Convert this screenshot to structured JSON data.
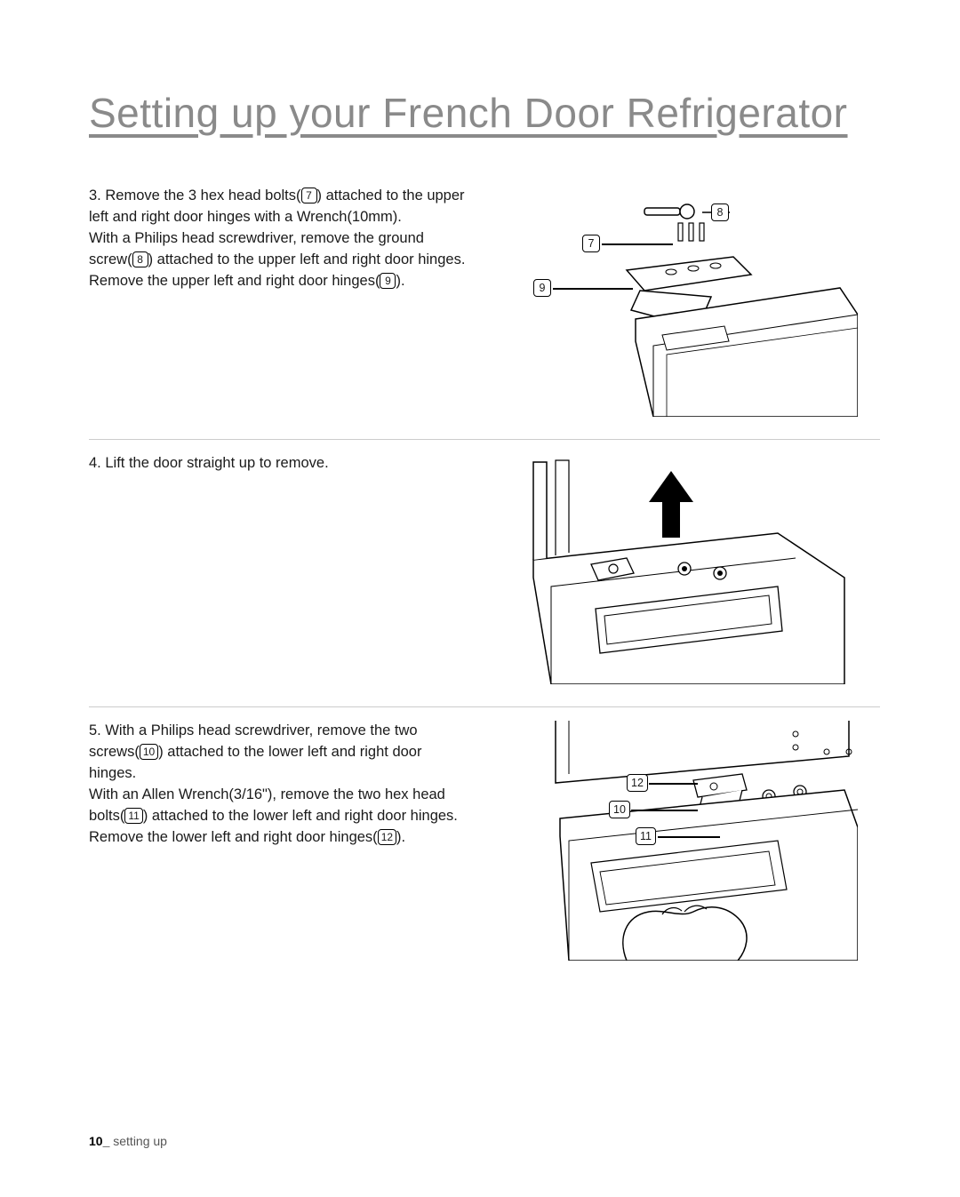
{
  "title": "Setting up your French Door Refrigerator",
  "steps": [
    {
      "num": "3.",
      "lines": [
        "Remove the 3 hex head bolts(|7|) attached to the upper left and right door hinges with a Wrench(10mm).",
        "With a Philips head screwdriver, remove the ground screw(|8|) attached to the upper left and right door hinges.",
        "Remove the upper left and right door hinges(|9|)."
      ],
      "callouts": [
        "7",
        "8",
        "9"
      ]
    },
    {
      "num": "4.",
      "lines": [
        "Lift the door straight up to remove."
      ],
      "callouts": []
    },
    {
      "num": "5.",
      "lines": [
        "With a Philips head screwdriver, remove the two screws(|10|) attached to the lower left and right door hinges.",
        "With an Allen Wrench(3/16\"), remove the two hex head bolts(|11|) attached to the lower left and right door hinges.",
        "Remove the lower left and right door hinges(|12|)."
      ],
      "callouts": [
        "10",
        "11",
        "12"
      ]
    }
  ],
  "footer_page": "10_",
  "footer_text": " setting up",
  "diagram1": {
    "labels": {
      "l7": "7",
      "l8": "8",
      "l9": "9"
    }
  },
  "diagram3": {
    "labels": {
      "l10": "10",
      "l11": "11",
      "l12": "12"
    }
  }
}
